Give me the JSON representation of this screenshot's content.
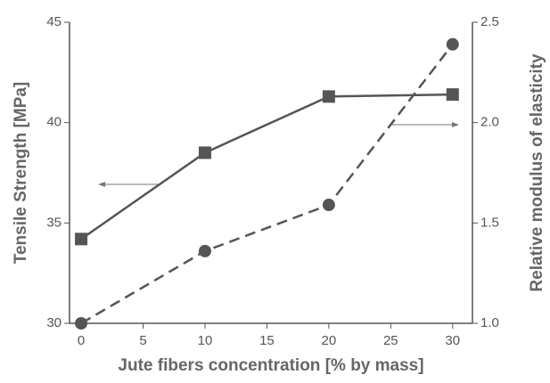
{
  "chart_data": {
    "type": "line",
    "x_label": "Jute fibers concentration [% by mass]",
    "y_label": "Tensile Strength [MPa]",
    "y2_label": "Relative modulus of elasticity",
    "x": [
      0,
      10,
      20,
      30
    ],
    "xlim": [
      -0.94,
      31.6
    ],
    "xticks": [
      0,
      5,
      10,
      15,
      20,
      25,
      30
    ],
    "ylim": [
      30,
      45
    ],
    "yticks": [
      30,
      35,
      40,
      45
    ],
    "y2lim": [
      1.0,
      2.5
    ],
    "y2ticks": [
      {
        "value": 1.0,
        "label": "1.0"
      },
      {
        "value": 1.5,
        "label": "1.5"
      },
      {
        "value": 2.0,
        "label": "2.0"
      },
      {
        "value": 2.5,
        "label": "2.5"
      }
    ],
    "series": [
      {
        "color": "#555555",
        "marker": "square",
        "line_style": "solid",
        "values": [
          34.2,
          38.5,
          41.3,
          41.4
        ]
      },
      {
        "color": "#555555",
        "marker": "circle",
        "line_style": "dashed",
        "axis": "y2",
        "values": [
          1.0,
          1.36,
          1.59,
          2.39
        ]
      }
    ]
  }
}
